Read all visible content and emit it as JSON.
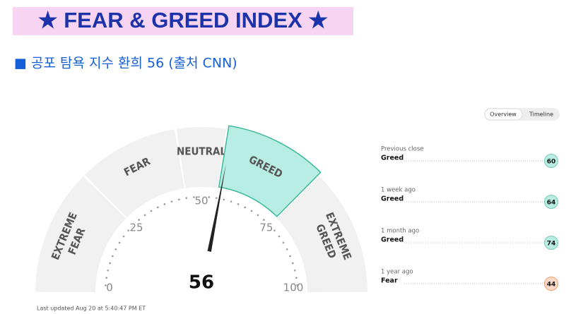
{
  "chart_data": {
    "type": "gauge",
    "title": "★ FEAR & GREED INDEX ★",
    "subtitle": "■ 공포 탐욕 지수 환희 56 (출처 CNN)",
    "value": 56,
    "xlim": [
      0,
      100
    ],
    "xticks": [
      0,
      25,
      50,
      75,
      100
    ],
    "bands": [
      {
        "label": [
          "EXTREME",
          "FEAR"
        ],
        "from": 0,
        "to": 25
      },
      {
        "label": [
          "FEAR"
        ],
        "from": 25,
        "to": 45
      },
      {
        "label": [
          "NEUTRAL"
        ],
        "from": 45,
        "to": 55
      },
      {
        "label": [
          "GREED"
        ],
        "from": 55,
        "to": 75
      },
      {
        "label": [
          "EXTREME",
          "GREED"
        ],
        "from": 75,
        "to": 100
      }
    ],
    "tabs": [
      "Overview",
      "Timeline"
    ],
    "history": [
      {
        "period": "Previous close",
        "rating": "Greed",
        "value": 60
      },
      {
        "period": "1 week ago",
        "rating": "Greed",
        "value": 64
      },
      {
        "period": "1 month ago",
        "rating": "Greed",
        "value": 74
      },
      {
        "period": "1 year ago",
        "rating": "Fear",
        "value": 44
      }
    ],
    "footnote": "Last updated Aug 20 at 5:40:47 PM ET"
  }
}
